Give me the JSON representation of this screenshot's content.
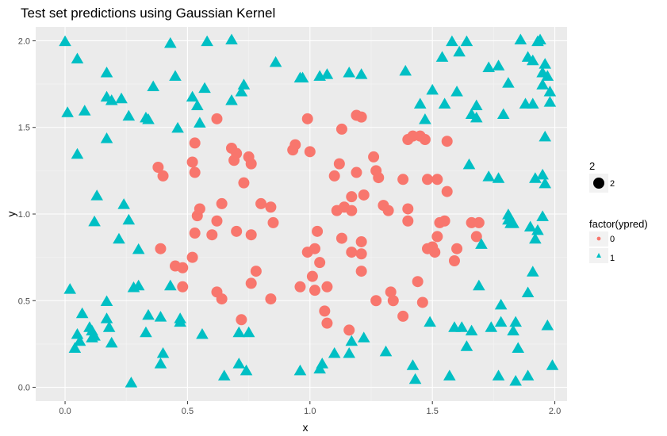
{
  "chart_data": {
    "type": "scatter",
    "title": "Test set predictions using Gaussian Kernel",
    "xlabel": "x",
    "ylabel": "y",
    "xlim": [
      -0.12,
      2.05
    ],
    "ylim": [
      -0.08,
      2.08
    ],
    "x_ticks": [
      "0.0",
      "0.5",
      "1.0",
      "1.5",
      "2.0"
    ],
    "y_ticks": [
      "0.0",
      "0.5",
      "1.0",
      "1.5",
      "2.0"
    ],
    "grid": true,
    "legend_position": "right",
    "legend": {
      "size_title": "2",
      "size_label": "2",
      "color_title": "factor(ypred)",
      "entries": [
        {
          "label": "0",
          "shape": "circle",
          "color": "#F8766D"
        },
        {
          "label": "1",
          "shape": "triangle",
          "color": "#00BFC4"
        }
      ]
    },
    "series": [
      {
        "name": "0",
        "color": "#F8766D",
        "shape": "circle",
        "points": [
          [
            0.38,
            1.27
          ],
          [
            0.4,
            1.22
          ],
          [
            0.39,
            0.8
          ],
          [
            0.45,
            0.7
          ],
          [
            0.48,
            0.69
          ],
          [
            0.48,
            0.58
          ],
          [
            0.52,
            1.3
          ],
          [
            0.53,
            1.41
          ],
          [
            0.53,
            1.24
          ],
          [
            0.54,
            0.99
          ],
          [
            0.55,
            1.03
          ],
          [
            0.53,
            0.89
          ],
          [
            0.52,
            0.75
          ],
          [
            0.6,
            0.88
          ],
          [
            0.62,
            0.96
          ],
          [
            0.64,
            1.06
          ],
          [
            0.62,
            1.55
          ],
          [
            0.68,
            1.38
          ],
          [
            0.69,
            1.31
          ],
          [
            0.7,
            1.35
          ],
          [
            0.7,
            0.9
          ],
          [
            0.62,
            0.55
          ],
          [
            0.64,
            0.51
          ],
          [
            0.73,
            1.18
          ],
          [
            0.75,
            1.33
          ],
          [
            0.76,
            1.29
          ],
          [
            0.76,
            0.88
          ],
          [
            0.78,
            0.67
          ],
          [
            0.76,
            0.6
          ],
          [
            0.72,
            0.39
          ],
          [
            0.8,
            1.06
          ],
          [
            0.84,
            1.04
          ],
          [
            0.85,
            0.95
          ],
          [
            0.84,
            0.51
          ],
          [
            0.93,
            1.37
          ],
          [
            0.94,
            1.4
          ],
          [
            0.99,
            1.55
          ],
          [
            1.0,
            1.36
          ],
          [
            0.96,
            0.58
          ],
          [
            0.99,
            0.78
          ],
          [
            1.01,
            0.64
          ],
          [
            1.02,
            0.56
          ],
          [
            1.02,
            0.8
          ],
          [
            1.03,
            0.9
          ],
          [
            1.04,
            0.72
          ],
          [
            1.07,
            0.58
          ],
          [
            1.06,
            0.44
          ],
          [
            1.07,
            0.37
          ],
          [
            1.1,
            1.22
          ],
          [
            1.11,
            1.02
          ],
          [
            1.12,
            1.29
          ],
          [
            1.13,
            1.49
          ],
          [
            1.13,
            0.86
          ],
          [
            1.14,
            1.04
          ],
          [
            1.17,
            1.1
          ],
          [
            1.17,
            1.02
          ],
          [
            1.17,
            0.78
          ],
          [
            1.16,
            0.33
          ],
          [
            1.19,
            1.24
          ],
          [
            1.19,
            1.57
          ],
          [
            1.21,
            1.56
          ],
          [
            1.21,
            0.84
          ],
          [
            1.21,
            0.77
          ],
          [
            1.21,
            0.67
          ],
          [
            1.22,
            1.11
          ],
          [
            1.26,
            1.33
          ],
          [
            1.27,
            1.25
          ],
          [
            1.28,
            1.21
          ],
          [
            1.3,
            1.05
          ],
          [
            1.32,
            1.02
          ],
          [
            1.33,
            0.55
          ],
          [
            1.34,
            0.5
          ],
          [
            1.27,
            0.5
          ],
          [
            1.38,
            1.2
          ],
          [
            1.4,
            1.43
          ],
          [
            1.42,
            1.45
          ],
          [
            1.4,
            1.03
          ],
          [
            1.4,
            0.96
          ],
          [
            1.38,
            0.41
          ],
          [
            1.45,
            1.45
          ],
          [
            1.47,
            1.43
          ],
          [
            1.48,
            1.2
          ],
          [
            1.48,
            0.8
          ],
          [
            1.5,
            0.81
          ],
          [
            1.51,
            0.78
          ],
          [
            1.52,
            1.2
          ],
          [
            1.52,
            0.87
          ],
          [
            1.53,
            0.95
          ],
          [
            1.55,
            0.96
          ],
          [
            1.56,
            1.42
          ],
          [
            1.56,
            1.13
          ],
          [
            1.44,
            0.61
          ],
          [
            1.46,
            0.49
          ],
          [
            1.59,
            0.73
          ],
          [
            1.6,
            0.8
          ],
          [
            1.66,
            0.95
          ],
          [
            1.68,
            0.87
          ],
          [
            1.69,
            0.95
          ]
        ]
      },
      {
        "name": "1",
        "color": "#00BFC4",
        "shape": "triangle",
        "points": [
          [
            0.0,
            1.99
          ],
          [
            0.05,
            1.89
          ],
          [
            0.01,
            1.58
          ],
          [
            0.08,
            1.59
          ],
          [
            0.05,
            1.34
          ],
          [
            0.17,
            1.81
          ],
          [
            0.17,
            1.67
          ],
          [
            0.19,
            1.65
          ],
          [
            0.23,
            1.66
          ],
          [
            0.17,
            1.43
          ],
          [
            0.26,
            1.56
          ],
          [
            0.33,
            1.55
          ],
          [
            0.34,
            1.54
          ],
          [
            0.36,
            1.73
          ],
          [
            0.43,
            1.98
          ],
          [
            0.45,
            1.79
          ],
          [
            0.46,
            1.49
          ],
          [
            0.52,
            1.67
          ],
          [
            0.54,
            1.62
          ],
          [
            0.55,
            1.52
          ],
          [
            0.57,
            1.72
          ],
          [
            0.58,
            1.99
          ],
          [
            0.68,
            2.0
          ],
          [
            0.68,
            1.65
          ],
          [
            0.72,
            1.7
          ],
          [
            0.73,
            1.74
          ],
          [
            0.86,
            1.87
          ],
          [
            0.96,
            1.78
          ],
          [
            0.97,
            1.78
          ],
          [
            1.04,
            1.79
          ],
          [
            1.07,
            1.8
          ],
          [
            1.16,
            1.81
          ],
          [
            1.21,
            1.8
          ],
          [
            1.39,
            1.82
          ],
          [
            1.45,
            1.63
          ],
          [
            1.47,
            1.54
          ],
          [
            1.5,
            1.71
          ],
          [
            1.54,
            1.9
          ],
          [
            1.58,
            1.99
          ],
          [
            1.61,
            1.93
          ],
          [
            1.64,
            1.99
          ],
          [
            1.6,
            1.7
          ],
          [
            1.55,
            1.63
          ],
          [
            1.68,
            1.62
          ],
          [
            1.66,
            1.57
          ],
          [
            1.68,
            1.55
          ],
          [
            1.73,
            1.84
          ],
          [
            1.77,
            1.85
          ],
          [
            1.81,
            1.75
          ],
          [
            1.86,
            2.0
          ],
          [
            1.89,
            1.9
          ],
          [
            1.91,
            1.88
          ],
          [
            1.93,
            1.99
          ],
          [
            1.94,
            2.0
          ],
          [
            1.95,
            1.81
          ],
          [
            1.97,
            1.79
          ],
          [
            1.96,
            1.86
          ],
          [
            1.95,
            1.74
          ],
          [
            1.98,
            1.7
          ],
          [
            1.88,
            1.63
          ],
          [
            1.91,
            1.63
          ],
          [
            1.98,
            1.64
          ],
          [
            1.79,
            1.57
          ],
          [
            1.65,
            1.28
          ],
          [
            1.73,
            1.21
          ],
          [
            1.77,
            1.2
          ],
          [
            1.92,
            1.2
          ],
          [
            1.95,
            1.22
          ],
          [
            1.96,
            1.17
          ],
          [
            1.96,
            1.44
          ],
          [
            1.81,
            0.99
          ],
          [
            1.81,
            0.96
          ],
          [
            1.82,
            0.94
          ],
          [
            1.83,
            0.94
          ],
          [
            1.9,
            0.92
          ],
          [
            1.93,
            0.9
          ],
          [
            1.95,
            0.98
          ],
          [
            1.92,
            0.85
          ],
          [
            1.7,
            0.82
          ],
          [
            1.69,
            0.58
          ],
          [
            1.91,
            0.66
          ],
          [
            1.89,
            0.54
          ],
          [
            1.78,
            0.47
          ],
          [
            1.78,
            0.37
          ],
          [
            1.83,
            0.32
          ],
          [
            1.84,
            0.37
          ],
          [
            1.97,
            0.35
          ],
          [
            1.85,
            0.22
          ],
          [
            1.74,
            0.34
          ],
          [
            1.59,
            0.34
          ],
          [
            1.62,
            0.34
          ],
          [
            1.64,
            0.23
          ],
          [
            1.66,
            0.32
          ],
          [
            1.77,
            0.06
          ],
          [
            1.84,
            0.03
          ],
          [
            1.89,
            0.06
          ],
          [
            1.99,
            0.12
          ],
          [
            1.57,
            0.06
          ],
          [
            1.49,
            0.37
          ],
          [
            1.42,
            0.12
          ],
          [
            1.43,
            0.04
          ],
          [
            1.31,
            0.2
          ],
          [
            1.22,
            0.28
          ],
          [
            1.17,
            0.26
          ],
          [
            1.16,
            0.19
          ],
          [
            1.1,
            0.19
          ],
          [
            1.05,
            0.13
          ],
          [
            1.04,
            0.1
          ],
          [
            0.96,
            0.09
          ],
          [
            0.74,
            0.09
          ],
          [
            0.71,
            0.13
          ],
          [
            0.71,
            0.31
          ],
          [
            0.75,
            0.31
          ],
          [
            0.65,
            0.06
          ],
          [
            0.56,
            0.3
          ],
          [
            0.47,
            0.37
          ],
          [
            0.47,
            0.39
          ],
          [
            0.43,
            0.58
          ],
          [
            0.4,
            0.19
          ],
          [
            0.39,
            0.4
          ],
          [
            0.39,
            0.13
          ],
          [
            0.34,
            0.41
          ],
          [
            0.33,
            0.31
          ],
          [
            0.3,
            0.58
          ],
          [
            0.28,
            0.57
          ],
          [
            0.3,
            0.79
          ],
          [
            0.24,
            1.05
          ],
          [
            0.26,
            0.96
          ],
          [
            0.22,
            0.85
          ],
          [
            0.13,
            1.1
          ],
          [
            0.12,
            0.95
          ],
          [
            0.02,
            0.56
          ],
          [
            0.05,
            0.3
          ],
          [
            0.07,
            0.42
          ],
          [
            0.1,
            0.34
          ],
          [
            0.11,
            0.32
          ],
          [
            0.12,
            0.29
          ],
          [
            0.06,
            0.26
          ],
          [
            0.04,
            0.22
          ],
          [
            0.17,
            0.49
          ],
          [
            0.17,
            0.39
          ],
          [
            0.18,
            0.34
          ],
          [
            0.19,
            0.25
          ],
          [
            0.27,
            0.02
          ],
          [
            0.11,
            0.28
          ]
        ]
      }
    ]
  }
}
